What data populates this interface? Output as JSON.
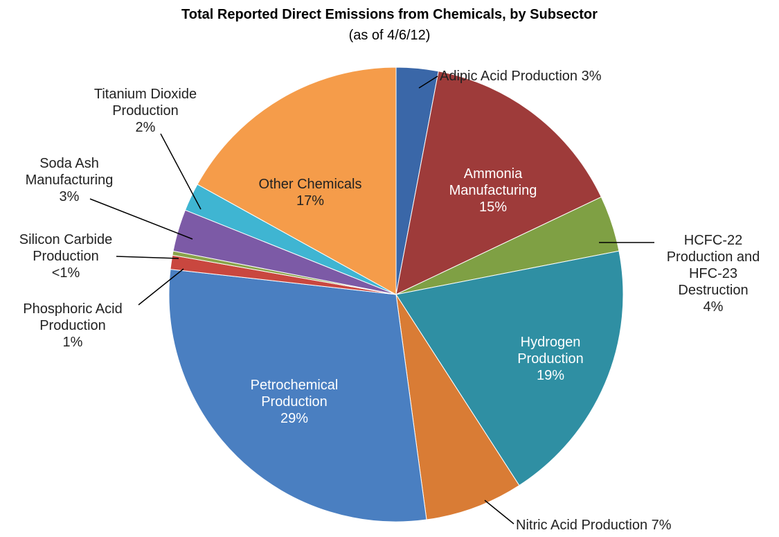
{
  "chart_data": {
    "type": "pie",
    "title": "Total Reported Direct Emissions from Chemicals, by Subsector",
    "subtitle": "(as of 4/6/12)",
    "categories": [
      "Adipic Acid Production",
      "Ammonia Manufacturing",
      "HCFC-22 Production and HFC-23 Destruction",
      "Hydrogen Production",
      "Nitric Acid Production",
      "Petrochemical Production",
      "Phosphoric Acid Production",
      "Silicon Carbide Production",
      "Soda Ash Manufacturing",
      "Titanium Dioxide Production",
      "Other Chemicals"
    ],
    "values": [
      3,
      15,
      4,
      19,
      7,
      29,
      1,
      0.3,
      3,
      2,
      17
    ],
    "value_labels": [
      "3%",
      "15%",
      "4%",
      "19%",
      "7%",
      "29%",
      "1%",
      "<1%",
      "3%",
      "2%",
      "17%"
    ],
    "colors": [
      "#3a67a8",
      "#9e3b3a",
      "#7fa044",
      "#2f8fa3",
      "#d97c35",
      "#4a7fc1",
      "#c9473f",
      "#8aa34a",
      "#7c5aa6",
      "#3fb5d2",
      "#f59c4a"
    ]
  }
}
